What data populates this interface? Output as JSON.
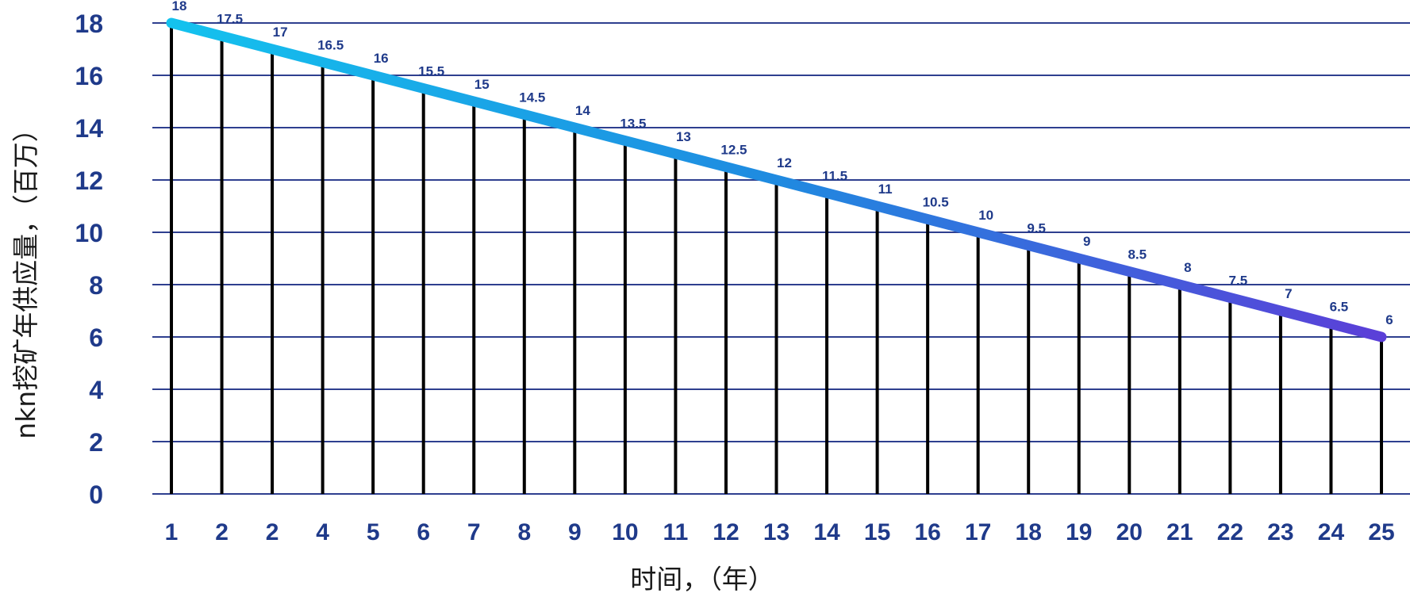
{
  "chart_data": {
    "type": "line",
    "title": "",
    "xlabel": "时间，（年）",
    "ylabel": "nkn挖矿年供应量，（百万）",
    "ylim": [
      0,
      18
    ],
    "yticks": [
      "0",
      "2",
      "4",
      "6",
      "8",
      "10",
      "12",
      "14",
      "16",
      "18"
    ],
    "categories": [
      "1",
      "2",
      "2",
      "4",
      "5",
      "6",
      "7",
      "8",
      "9",
      "10",
      "11",
      "12",
      "13",
      "14",
      "15",
      "16",
      "17",
      "18",
      "19",
      "20",
      "21",
      "22",
      "23",
      "24",
      "25"
    ],
    "values": [
      18,
      17.5,
      17,
      16.5,
      16,
      15.5,
      15,
      14.5,
      14,
      13.5,
      13,
      12.5,
      12,
      11.5,
      11,
      10.5,
      10,
      9.5,
      9,
      8.5,
      8,
      7.5,
      7,
      6.5,
      6
    ],
    "data_labels": [
      "18",
      "17.5",
      "17",
      "16.5",
      "16",
      "15.5",
      "15",
      "14.5",
      "14",
      "13.5",
      "13",
      "12.5",
      "12",
      "11.5",
      "11",
      "10.5",
      "10",
      "9.5",
      "9",
      "8.5",
      "8",
      "7.5",
      "7",
      "6.5",
      "6"
    ],
    "grid": true,
    "drop_lines": true,
    "colors": {
      "grid": "#2e3f8f",
      "drop_lines": "#000000",
      "line_start": "#14c2ee",
      "line_mid": "#1f8ae0",
      "line_end": "#5b3fd8",
      "tick_text": "#1f3a8a",
      "axis_title": "#1a1a1a"
    }
  }
}
